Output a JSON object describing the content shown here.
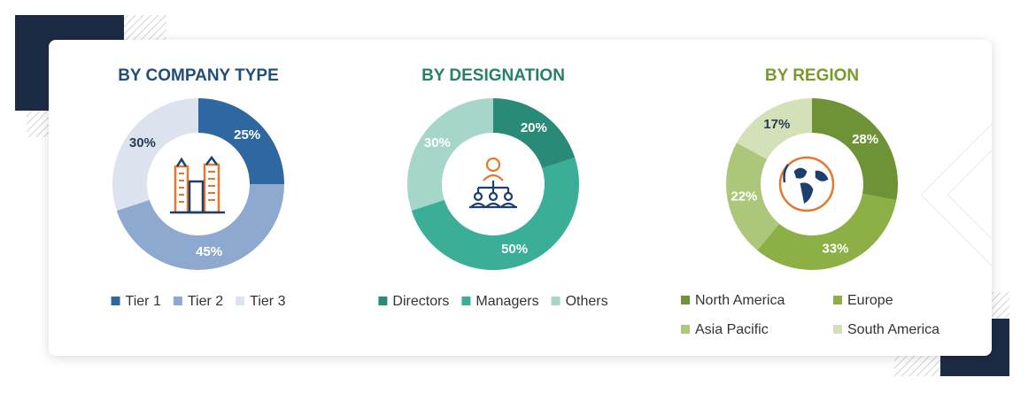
{
  "chart_data": [
    {
      "type": "pie",
      "title": "BY COMPANY TYPE",
      "title_color": "#1f4e79",
      "categories": [
        "Tier 1",
        "Tier 2",
        "Tier 3"
      ],
      "values": [
        25,
        45,
        30
      ],
      "value_labels": [
        "25%",
        "45%",
        "30%"
      ],
      "colors": [
        "#2f67a0",
        "#8ea9d0",
        "#dce3ef"
      ]
    },
    {
      "type": "pie",
      "title": "BY DESIGNATION",
      "title_color": "#2a7f6a",
      "categories": [
        "Directors",
        "Managers",
        "Others"
      ],
      "values": [
        20,
        50,
        30
      ],
      "value_labels": [
        "20%",
        "50%",
        "30%"
      ],
      "colors": [
        "#2a8a78",
        "#3aae96",
        "#a6d6c9"
      ]
    },
    {
      "type": "pie",
      "title": "BY REGION",
      "title_color": "#7a9a2a",
      "categories": [
        "North America",
        "Europe",
        "Asia Pacific",
        "South America"
      ],
      "values": [
        28,
        33,
        22,
        17
      ],
      "value_labels": [
        "28%",
        "33%",
        "22%",
        "17%"
      ],
      "colors": [
        "#6e9336",
        "#8cb045",
        "#adc77a",
        "#d3e0b8"
      ]
    }
  ]
}
